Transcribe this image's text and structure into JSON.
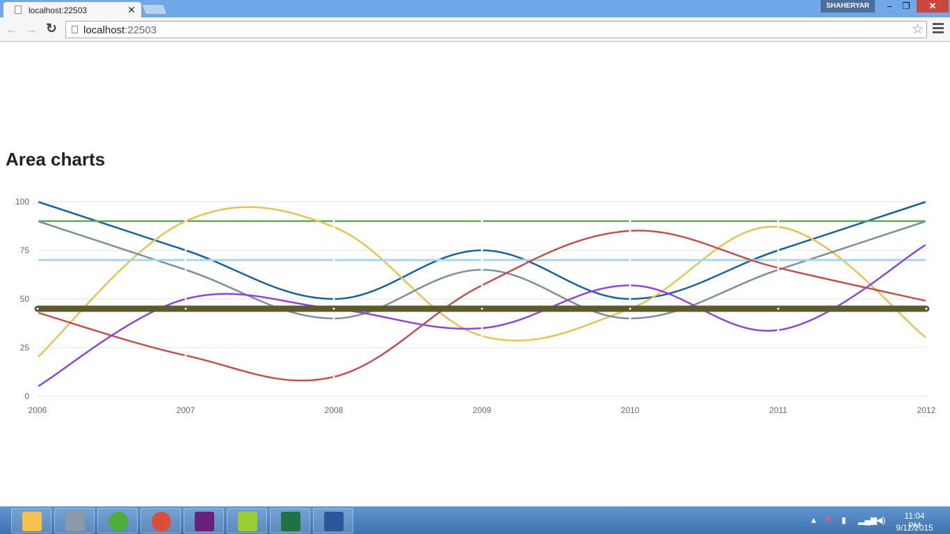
{
  "browser": {
    "tab_title": "localhost:22503",
    "tab_close": "✕",
    "profile_name": "SHAHERYAR",
    "url_host": "localhost",
    "url_port": ":22503",
    "win_min": "–",
    "win_max": "❐",
    "win_close": "✕"
  },
  "page": {
    "heading": "Area charts"
  },
  "chart_data": {
    "type": "line",
    "categories": [
      "2006",
      "2007",
      "2008",
      "2009",
      "2010",
      "2011",
      "2012"
    ],
    "ylim": [
      0,
      100
    ],
    "yticks": [
      "0",
      "25",
      "50",
      "75",
      "100"
    ],
    "grid": true,
    "smooth": true,
    "series": [
      {
        "color": "#15629b",
        "width": 2.5,
        "values": [
          100,
          75,
          50,
          75,
          50,
          75,
          100
        ]
      },
      {
        "color": "#60a55a",
        "width": 2.5,
        "values": [
          90,
          90,
          90,
          90,
          90,
          90,
          90
        ]
      },
      {
        "color": "#e8c150",
        "width": 2.5,
        "values": [
          20,
          90,
          87,
          31,
          45,
          87,
          30
        ]
      },
      {
        "color": "#7b909e",
        "width": 2.5,
        "values": [
          90,
          65,
          40,
          65,
          40,
          65,
          90
        ]
      },
      {
        "color": "#a8d4ee",
        "width": 3,
        "values": [
          70,
          70,
          70,
          70,
          70,
          70,
          70
        ]
      },
      {
        "color": "#c0504d",
        "width": 2.5,
        "values": [
          43,
          21,
          10,
          57,
          85,
          66,
          49
        ]
      },
      {
        "color": "#8e44d6",
        "width": 2.5,
        "values": [
          5,
          50,
          45,
          35,
          57,
          34,
          78
        ]
      },
      {
        "color": "#5c5a2e",
        "width": 9,
        "values": [
          45,
          45,
          45,
          45,
          45,
          45,
          45
        ]
      }
    ]
  },
  "taskbar": {
    "items": [
      {
        "name": "file-explorer-icon",
        "color": "#f2c14e"
      },
      {
        "name": "windows-explorer-icon",
        "color": "#8a9aa8"
      },
      {
        "name": "utorrent-icon",
        "color": "#4caf3a"
      },
      {
        "name": "chrome-icon",
        "color": "#dd4b39"
      },
      {
        "name": "visual-studio-icon",
        "color": "#68217a"
      },
      {
        "name": "notepad-plus-icon",
        "color": "#9acd32"
      },
      {
        "name": "excel-icon",
        "color": "#1f7244"
      },
      {
        "name": "word-icon",
        "color": "#2b579a"
      }
    ],
    "clock_time": "11:04 PM",
    "clock_date": "9/12/2015"
  }
}
